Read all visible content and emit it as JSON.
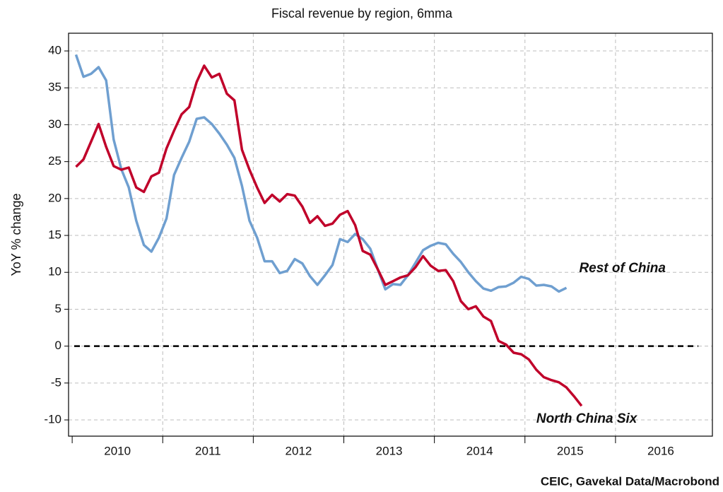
{
  "chart_data": {
    "type": "line",
    "title": "Fiscal revenue by region, 6mma",
    "ylabel": "YoY % change",
    "source": "CEIC, Gavekal Data/Macrobond",
    "x": [
      2010.042,
      2010.125,
      2010.208,
      2010.292,
      2010.375,
      2010.458,
      2010.542,
      2010.625,
      2010.708,
      2010.792,
      2010.875,
      2010.958,
      2011.042,
      2011.125,
      2011.208,
      2011.292,
      2011.375,
      2011.458,
      2011.542,
      2011.625,
      2011.708,
      2011.792,
      2011.875,
      2011.958,
      2012.042,
      2012.125,
      2012.208,
      2012.292,
      2012.375,
      2012.458,
      2012.542,
      2012.625,
      2012.708,
      2012.792,
      2012.875,
      2012.958,
      2013.042,
      2013.125,
      2013.208,
      2013.292,
      2013.375,
      2013.458,
      2013.542,
      2013.625,
      2013.708,
      2013.792,
      2013.875,
      2013.958,
      2014.042,
      2014.125,
      2014.208,
      2014.292,
      2014.375,
      2014.458,
      2014.542,
      2014.625,
      2014.708,
      2014.792,
      2014.875,
      2014.958,
      2015.042,
      2015.125,
      2015.208,
      2015.292,
      2015.375,
      2015.458,
      2015.542,
      2015.625
    ],
    "series": [
      {
        "name": "Rest of China",
        "color": "#6f9fd0",
        "values": [
          39.5,
          36.5,
          36.9,
          37.8,
          36,
          28,
          24,
          21.5,
          17,
          13.7,
          12.8,
          14.7,
          17.3,
          23.2,
          25.5,
          27.7,
          30.8,
          31,
          30.1,
          28.8,
          27.3,
          25.5,
          21.7,
          17,
          14.7,
          11.5,
          11.5,
          9.9,
          10.2,
          11.8,
          11.2,
          9.5,
          8.3,
          9.6,
          11,
          14.5,
          14.1,
          15.2,
          14.5,
          13.2,
          10.4,
          7.7,
          8.4,
          8.3,
          9.6,
          11.3,
          13,
          13.6,
          14,
          13.8,
          12.5,
          11.4,
          10,
          8.8,
          7.8,
          7.5,
          8,
          8.1,
          8.6,
          9.4,
          9.1,
          8.2,
          8.3,
          8.1,
          7.4,
          7.9,
          null,
          null
        ]
      },
      {
        "name": "North China Six",
        "color": "#c0002a",
        "values": [
          24.3,
          25.3,
          27.7,
          30.1,
          27,
          24.4,
          23.9,
          24.2,
          21.5,
          20.9,
          23,
          23.5,
          26.8,
          29.2,
          31.4,
          32.4,
          35.8,
          38,
          36.4,
          36.9,
          34.2,
          33.3,
          26.6,
          23.9,
          21.5,
          19.4,
          20.5,
          19.6,
          20.6,
          20.4,
          18.9,
          16.7,
          17.6,
          16.3,
          16.6,
          17.8,
          18.3,
          16.4,
          12.9,
          12.4,
          10.4,
          8.3,
          8.8,
          9.3,
          9.6,
          10.7,
          12.2,
          10.9,
          10.2,
          10.3,
          8.8,
          6.1,
          5,
          5.4,
          4,
          3.4,
          0.7,
          0.2,
          -0.9,
          -1.1,
          -1.8,
          -3.2,
          -4.2,
          -4.6,
          -4.9,
          -5.6,
          -6.8,
          -8.1
        ]
      }
    ],
    "xlim": [
      2009.96,
      2017.07
    ],
    "xticks": [
      2010,
      2011,
      2012,
      2013,
      2014,
      2015,
      2016
    ],
    "ylim": [
      -12.2,
      42.4
    ],
    "yticks": [
      -10,
      -5,
      0,
      5,
      10,
      15,
      20,
      25,
      30,
      35,
      40
    ],
    "reference_line": 0,
    "grid": true
  }
}
